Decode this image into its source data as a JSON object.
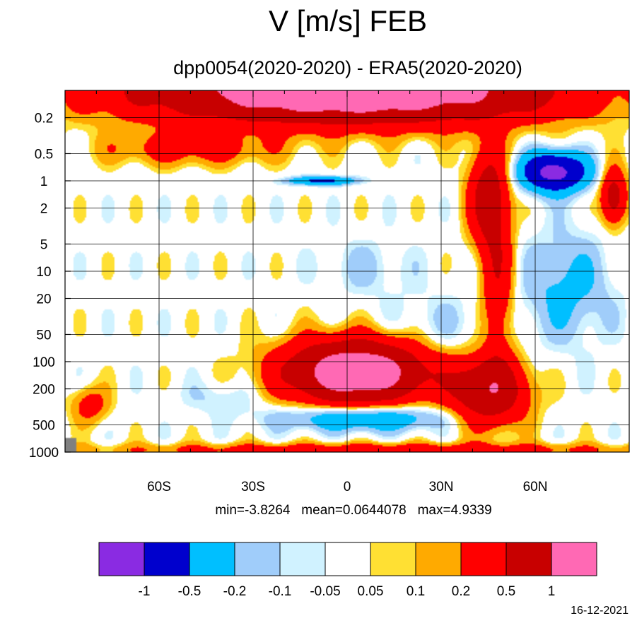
{
  "chart_data": {
    "type": "heatmap",
    "title": "V [m/s] FEB",
    "subtitle": "dpp0054(2020-2020) - ERA5(2020-2020)",
    "xlabel": "",
    "ylabel": "",
    "x_range": [
      -90,
      90
    ],
    "x_ticks": [
      {
        "value": -60,
        "label": "60S"
      },
      {
        "value": -30,
        "label": "30S"
      },
      {
        "value": 0,
        "label": "0"
      },
      {
        "value": 30,
        "label": "30N"
      },
      {
        "value": 60,
        "label": "60N"
      }
    ],
    "y_scale": "log",
    "y_range": [
      1000,
      0.1
    ],
    "y_ticks": [
      {
        "value": 0.2,
        "label": "0.2"
      },
      {
        "value": 0.5,
        "label": "0.5"
      },
      {
        "value": 1,
        "label": "1"
      },
      {
        "value": 2,
        "label": "2"
      },
      {
        "value": 5,
        "label": "5"
      },
      {
        "value": 10,
        "label": "10"
      },
      {
        "value": 20,
        "label": "20"
      },
      {
        "value": 50,
        "label": "50"
      },
      {
        "value": 100,
        "label": "100"
      },
      {
        "value": 200,
        "label": "200"
      },
      {
        "value": 500,
        "label": "500"
      },
      {
        "value": 1000,
        "label": "1000"
      }
    ],
    "grid": true,
    "stats": "min=-3.8264   mean=0.0644078   max=4.9339",
    "levels": [
      -1,
      -0.5,
      -0.2,
      -0.1,
      -0.05,
      0.05,
      0.1,
      0.2,
      0.5,
      1
    ],
    "level_labels": [
      "-1",
      "-0.5",
      "-0.2",
      "-0.1",
      "-0.05",
      "0.05",
      "0.1",
      "0.2",
      "0.5",
      "1"
    ],
    "colors": [
      "#8a2be2",
      "#0000cd",
      "#00bfff",
      "#a0cdfa",
      "#d0f2ff",
      "#ffffff",
      "#ffe033",
      "#ffaa00",
      "#ff0000",
      "#c80000",
      "#ff69b4"
    ],
    "missing_color": "#808080",
    "features": [
      {
        "lat": 0,
        "p": 0.1,
        "w": 65,
        "h": 2.2,
        "v": 1.6
      },
      {
        "lat": -50,
        "p": 0.45,
        "w": 28,
        "h": 1.5,
        "v": 0.3
      },
      {
        "lat": 45,
        "p": 1.5,
        "w": 6,
        "h": 3.5,
        "v": 0.7
      },
      {
        "lat": 48,
        "p": 15,
        "w": 5,
        "h": 8,
        "v": 0.45
      },
      {
        "lat": 66,
        "p": 0.8,
        "w": 10,
        "h": 1.6,
        "v": -1.2
      },
      {
        "lat": 5,
        "p": 1.8,
        "w": 20,
        "h": 1.0,
        "v": -1.0
      },
      {
        "lat": -8,
        "p": 1.0,
        "w": 10,
        "h": 0.9,
        "v": -0.6
      },
      {
        "lat": 3,
        "p": 4.5,
        "w": 22,
        "h": 1.0,
        "v": 0.3
      },
      {
        "lat": 6,
        "p": 9,
        "w": 14,
        "h": 0.5,
        "v": -0.12
      },
      {
        "lat": 70,
        "p": 15,
        "w": 14,
        "h": 4,
        "v": -0.25
      },
      {
        "lat": 30,
        "p": 45,
        "w": 20,
        "h": 2.5,
        "v": -0.12
      },
      {
        "lat": 3,
        "p": 130,
        "w": 22,
        "h": 2.2,
        "v": 1.5
      },
      {
        "lat": 45,
        "p": 210,
        "w": 12,
        "h": 2.3,
        "v": 0.9
      },
      {
        "lat": 5,
        "p": 420,
        "w": 26,
        "h": 1.4,
        "v": -0.5
      },
      {
        "lat": -40,
        "p": 250,
        "w": 12,
        "h": 1.5,
        "v": -0.12
      },
      {
        "lat": -82,
        "p": 300,
        "w": 6,
        "h": 1.6,
        "v": 0.3
      },
      {
        "lat": 85,
        "p": 1.5,
        "w": 4,
        "h": 2.0,
        "v": 0.7
      },
      {
        "lat": 10,
        "p": 950,
        "w": 90,
        "h": 1.2,
        "v": 0.35
      }
    ]
  },
  "date": "16-12-2021"
}
